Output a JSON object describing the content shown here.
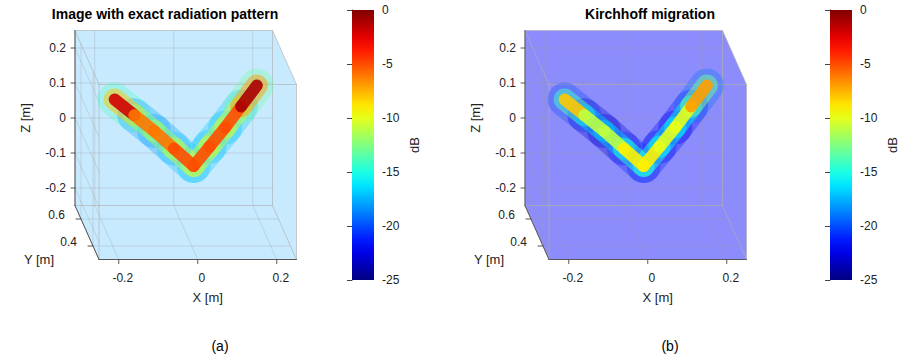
{
  "chart_data": [
    {
      "type": "volume",
      "title": "Image with exact radiation pattern",
      "caption": "(a)",
      "x_label": "X [m]",
      "y_label": "Y [m]",
      "z_label": "Z [m]",
      "xlim": [
        -0.25,
        0.25
      ],
      "ylim": [
        0.3,
        0.7
      ],
      "zlim": [
        -0.25,
        0.25
      ],
      "xticks": [
        -0.2,
        0,
        0.2
      ],
      "yticks": [
        0.4,
        0.6
      ],
      "zticks": [
        -0.2,
        -0.1,
        0,
        0.1,
        0.2
      ],
      "grid": true,
      "colorbar": {
        "label": "dB",
        "range": [
          -25,
          0
        ],
        "ticks": [
          -25,
          -20,
          -15,
          -10,
          -5,
          0
        ]
      },
      "background_db": -18,
      "target": {
        "x": [
          -0.18,
          -0.08,
          0.02,
          0.1,
          0.18
        ],
        "y": [
          0.5,
          0.5,
          0.5,
          0.5,
          0.5
        ],
        "z": [
          0.13,
          0.04,
          -0.06,
          0.05,
          0.17
        ],
        "db": [
          -2,
          -6,
          -5,
          -5,
          -1
        ]
      }
    },
    {
      "type": "volume",
      "title": "Kirchhoff migration",
      "caption": "(b)",
      "x_label": "X [m]",
      "y_label": "Y [m]",
      "z_label": "Z [m]",
      "xlim": [
        -0.25,
        0.25
      ],
      "ylim": [
        0.3,
        0.7
      ],
      "zlim": [
        -0.25,
        0.25
      ],
      "xticks": [
        -0.2,
        0,
        0.2
      ],
      "yticks": [
        0.4,
        0.6
      ],
      "zticks": [
        -0.2,
        -0.1,
        0,
        0.1,
        0.2
      ],
      "grid": true,
      "colorbar": {
        "label": "dB",
        "range": [
          -25,
          0
        ],
        "ticks": [
          -25,
          -20,
          -15,
          -10,
          -5,
          0
        ]
      },
      "background_db": -22,
      "target": {
        "x": [
          -0.18,
          -0.08,
          0.02,
          0.1,
          0.18
        ],
        "y": [
          0.5,
          0.5,
          0.5,
          0.5,
          0.5
        ],
        "z": [
          0.13,
          0.04,
          -0.06,
          0.05,
          0.17
        ],
        "db": [
          -8,
          -11,
          -9,
          -10,
          -7
        ]
      }
    }
  ]
}
